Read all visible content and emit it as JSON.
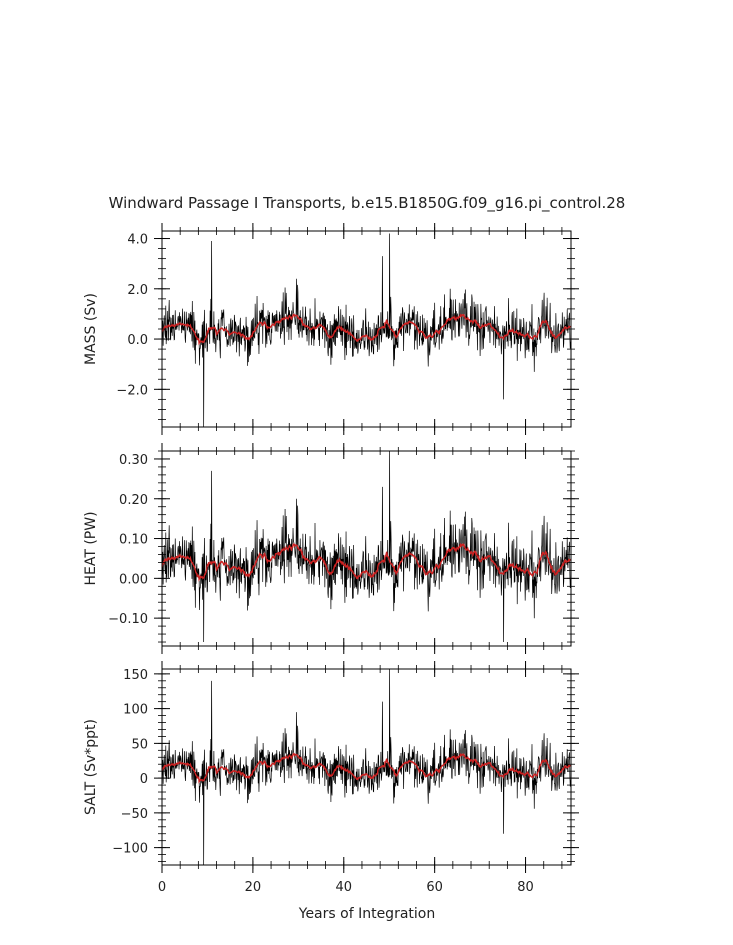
{
  "title": "Windward Passage I Transports, b.e15.B1850G.f09_g16.pi_control.28",
  "colors": {
    "raw_series": "#000000",
    "smoothed_series": "#cc2222",
    "axes": "#000000"
  },
  "chart_data": [
    {
      "type": "line",
      "ylabel": "MASS (Sv)",
      "xlim": [
        0,
        90
      ],
      "ylim": [
        -3.5,
        4.3
      ],
      "yticks": [
        -2.0,
        0.0,
        2.0,
        4.0
      ],
      "ytick_labels": [
        "−2.0",
        "0.0",
        "2.0",
        "4.0"
      ],
      "xticks": [
        0,
        20,
        40,
        60,
        80
      ],
      "baseline": 0.35,
      "noise_std": 0.55,
      "spikes": [
        [
          10.9,
          3.9
        ],
        [
          9.2,
          -3.5
        ],
        [
          50.1,
          4.2
        ],
        [
          48.5,
          3.3
        ],
        [
          29.6,
          2.4
        ],
        [
          75.2,
          -2.4
        ]
      ],
      "series": [
        {
          "name": "",
          "kind": "monthly",
          "values_description": ""
        },
        {
          "name": "",
          "kind": "smoothed"
        }
      ]
    },
    {
      "type": "line",
      "ylabel": "HEAT (PW)",
      "xlim": [
        0,
        90
      ],
      "ylim": [
        -0.17,
        0.32
      ],
      "yticks": [
        -0.1,
        0.0,
        0.1,
        0.2,
        0.3
      ],
      "ytick_labels": [
        "−0.10",
        "0.00",
        "0.10",
        "0.20",
        "0.30"
      ],
      "xticks": [
        0,
        20,
        40,
        60,
        80
      ],
      "baseline": 0.035,
      "noise_std": 0.045,
      "spikes": [
        [
          10.9,
          0.27
        ],
        [
          9.2,
          -0.16
        ],
        [
          50.1,
          0.32
        ],
        [
          48.5,
          0.23
        ],
        [
          75.2,
          -0.16
        ],
        [
          29.6,
          0.2
        ]
      ],
      "series": [
        {
          "name": "",
          "kind": "monthly"
        },
        {
          "name": "",
          "kind": "smoothed"
        }
      ]
    },
    {
      "type": "line",
      "ylabel": "SALT (Sv*ppt)",
      "xlim": [
        0,
        90
      ],
      "ylim": [
        -125,
        157
      ],
      "yticks": [
        -100,
        -50,
        0,
        50,
        100,
        150
      ],
      "ytick_labels": [
        "−100",
        "−50",
        "0",
        "50",
        "100",
        "150"
      ],
      "xticks": [
        0,
        20,
        40,
        60,
        80
      ],
      "xtick_labels": [
        "0",
        "20",
        "40",
        "60",
        "80"
      ],
      "xlabel": "Years of Integration",
      "baseline": 13,
      "noise_std": 19,
      "spikes": [
        [
          10.9,
          140
        ],
        [
          9.2,
          -125
        ],
        [
          50.1,
          157
        ],
        [
          48.5,
          110
        ],
        [
          75.2,
          -80
        ],
        [
          29.6,
          95
        ]
      ],
      "series": [
        {
          "name": "",
          "kind": "monthly"
        },
        {
          "name": "",
          "kind": "smoothed"
        }
      ]
    }
  ]
}
